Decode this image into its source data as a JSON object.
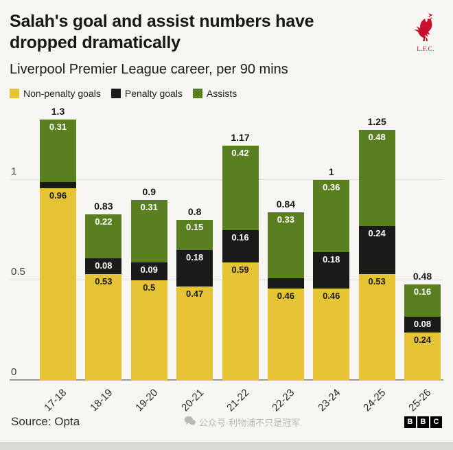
{
  "header": {
    "title": "Salah's goal and assist numbers have dropped dramatically",
    "subtitle": "Liverpool Premier League career, per 90 mins",
    "club_initials": "L.F.C.",
    "crest_color": "#c8102e"
  },
  "legend": [
    {
      "label": "Non-penalty goals",
      "color": "#e5c334"
    },
    {
      "label": "Penalty goals",
      "color": "#1a1a1a"
    },
    {
      "label": "Assists",
      "color": "#5a7f21"
    }
  ],
  "chart_data": {
    "type": "bar",
    "stacked": true,
    "title": "Salah's goal and assist numbers have dropped dramatically",
    "subtitle": "Liverpool Premier League career, per 90 mins",
    "categories": [
      "17-18",
      "18-19",
      "19-20",
      "20-21",
      "21-22",
      "22-23",
      "23-24",
      "24-25",
      "25-26"
    ],
    "series": [
      {
        "name": "Non-penalty goals",
        "color": "#e5c334",
        "label_color": "#1a1a1a",
        "values": [
          0.96,
          0.53,
          0.5,
          0.47,
          0.59,
          0.46,
          0.46,
          0.53,
          0.24
        ],
        "labels": [
          "0.96",
          "0.53",
          "0.5",
          "0.47",
          "0.59",
          "0.46",
          "0.46",
          "0.53",
          "0.24"
        ]
      },
      {
        "name": "Penalty goals",
        "color": "#1a1a1a",
        "label_color": "#ffffff",
        "values": [
          0.03,
          0.08,
          0.09,
          0.18,
          0.16,
          0.05,
          0.18,
          0.24,
          0.08
        ],
        "labels": [
          null,
          "0.08",
          "0.09",
          "0.18",
          "0.16",
          null,
          "0.18",
          "0.24",
          "0.08"
        ]
      },
      {
        "name": "Assists",
        "color": "#5a7f21",
        "label_color": "#ffffff",
        "values": [
          0.31,
          0.22,
          0.31,
          0.15,
          0.42,
          0.33,
          0.36,
          0.48,
          0.16
        ],
        "labels": [
          "0.31",
          "0.22",
          "0.31",
          "0.15",
          "0.42",
          "0.33",
          "0.36",
          "0.48",
          "0.16"
        ]
      }
    ],
    "totals": [
      "1.3",
      "0.83",
      "0.9",
      "0.8",
      "1.17",
      "0.84",
      "1",
      "1.25",
      "0.48"
    ],
    "y_ticks": [
      {
        "value": 0,
        "label": "0"
      },
      {
        "value": 0.5,
        "label": "0.5"
      },
      {
        "value": 1,
        "label": "1"
      }
    ],
    "ylim": [
      0,
      1.36
    ],
    "grid": true,
    "legend_position": "top"
  },
  "footer": {
    "source": "Source: Opta",
    "watermark": "公众号·利物浦不只是冠军",
    "logo_letters": [
      "B",
      "B",
      "C"
    ]
  }
}
